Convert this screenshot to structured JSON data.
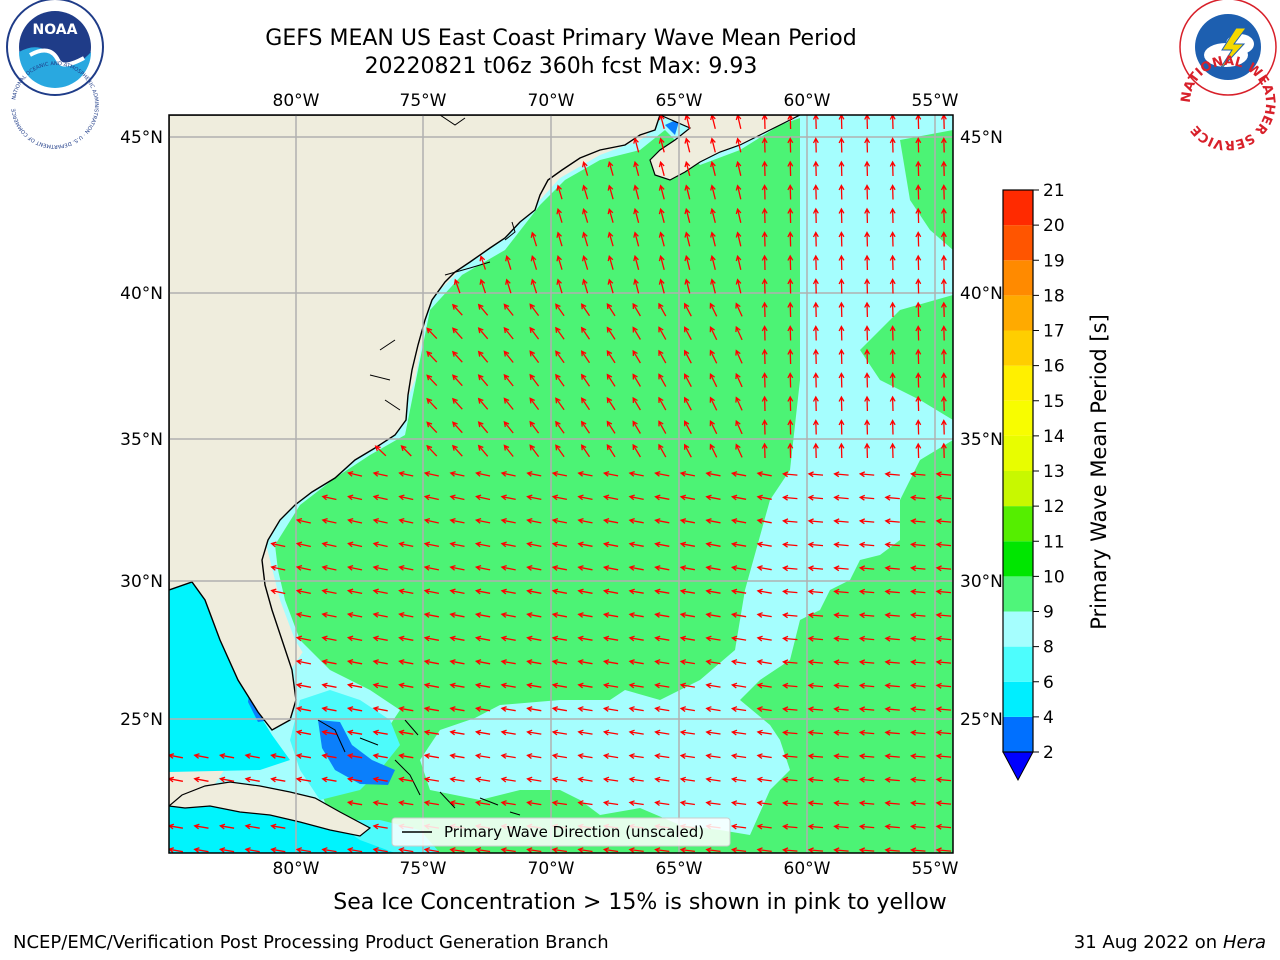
{
  "title": {
    "line1": "GEFS MEAN US East Coast Primary Wave Mean Period",
    "line2": "20220821 t06z 360h fcst   Max: 9.93"
  },
  "map": {
    "lon_ticks": [
      "80°W",
      "75°W",
      "70°W",
      "65°W",
      "60°W",
      "55°W"
    ],
    "lat_ticks": [
      "45°N",
      "40°N",
      "35°N",
      "30°N",
      "25°N"
    ],
    "colors": {
      "land": "#efeddd",
      "grid": "#b0b0b0",
      "arrow": "#ff0000",
      "period_8_9": "#a5fefe",
      "period_9_10": "#4cf375",
      "period_6_8": "#4dfbfb",
      "period_4_6": "#00f4fd",
      "period_2_4": "#0b7ffb"
    },
    "legend_label": "Primary Wave Direction (unscaled)"
  },
  "colorbar": {
    "label": "Primary Wave Mean Period [s]",
    "ticks": [
      "2",
      "4",
      "6",
      "8",
      "9",
      "10",
      "11",
      "12",
      "13",
      "14",
      "15",
      "16",
      "17",
      "18",
      "19",
      "20",
      "21"
    ],
    "colors": [
      "#0070ff",
      "#00eeff",
      "#4dfdfd",
      "#a5fefe",
      "#4ff57a",
      "#00e600",
      "#55ee00",
      "#c8f800",
      "#e8fd00",
      "#f8fd00",
      "#fff000",
      "#ffce00",
      "#ffaa00",
      "#ff8a00",
      "#ff5500",
      "#ff2a00",
      "#ff0000"
    ],
    "extend_color": "#0000ff"
  },
  "footer": {
    "note": "Sea Ice Concentration > 15% is shown in pink to yellow",
    "credit_left": "NCEP/EMC/Verification Post Processing Product Generation Branch",
    "credit_date": "31 Aug 2022 on",
    "credit_host": "Hera"
  },
  "logos": {
    "left": "NOAA",
    "left_ring": "NATIONAL OCEANIC AND ATMOSPHERIC ADMINISTRATION · U.S. DEPARTMENT OF COMMERCE",
    "right_ring": "NATIONAL WEATHER SERVICE"
  }
}
